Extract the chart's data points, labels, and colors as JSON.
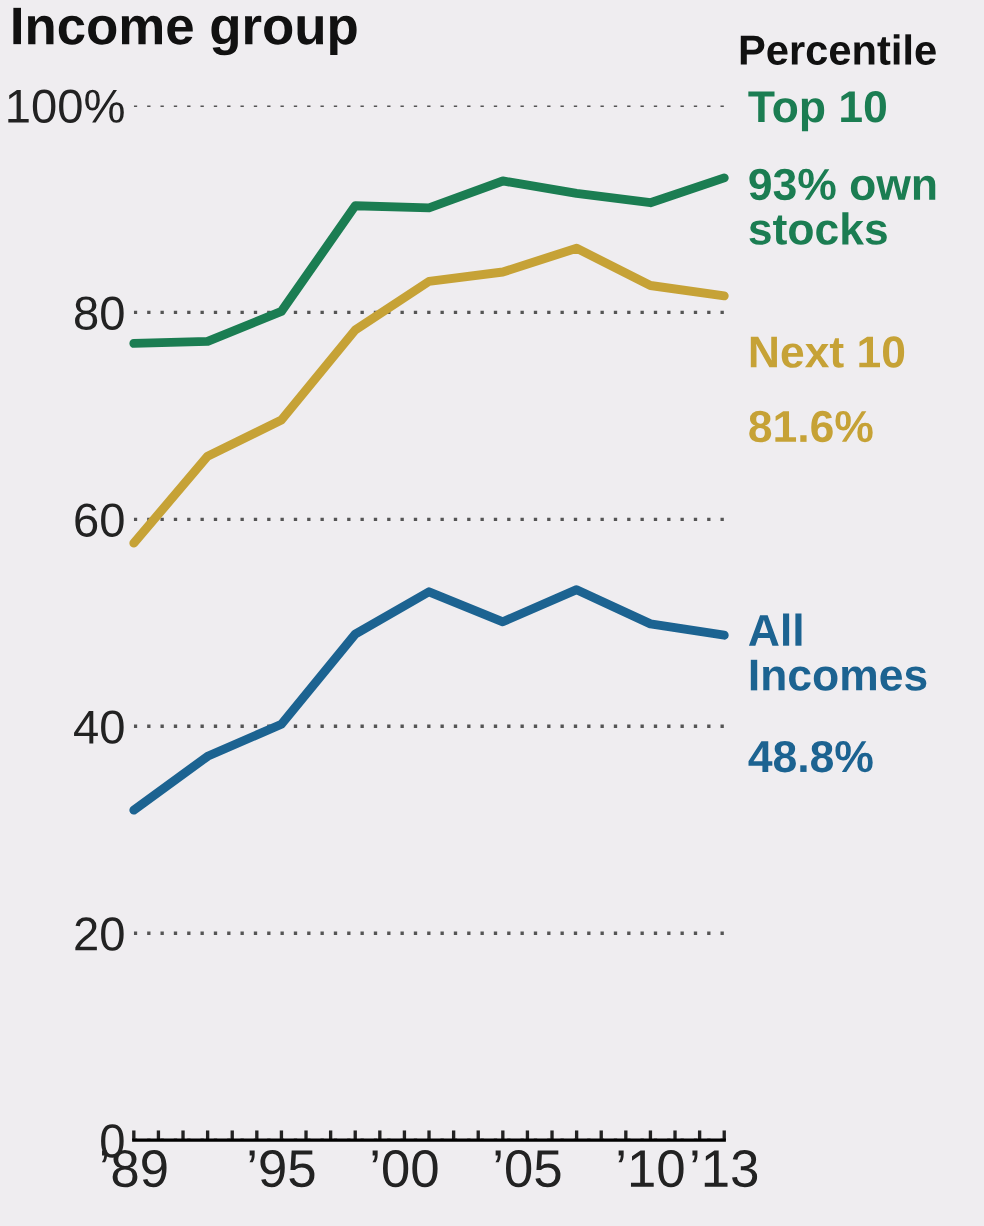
{
  "chart_data": {
    "type": "line",
    "title": "Income group",
    "legend_title": "Percentile",
    "x": [
      1989,
      1992,
      1995,
      1998,
      2001,
      2004,
      2007,
      2010,
      2013
    ],
    "series": [
      {
        "name": "Top 10",
        "color": "#1b7d52",
        "values": [
          77.0,
          77.2,
          80.1,
          90.3,
          90.1,
          92.7,
          91.5,
          90.6,
          93.0
        ]
      },
      {
        "name": "Next 10",
        "color": "#c6a236",
        "values": [
          57.7,
          66.1,
          69.6,
          78.3,
          83.0,
          83.9,
          86.2,
          82.6,
          81.6
        ]
      },
      {
        "name": "All Incomes",
        "color": "#1c6391",
        "values": [
          31.9,
          37.1,
          40.2,
          48.9,
          53.0,
          50.1,
          53.2,
          49.9,
          48.8
        ]
      }
    ],
    "annotations": [
      "93% own stocks",
      "81.6%",
      "48.8%"
    ],
    "xlim": [
      1989,
      2013
    ],
    "xticks": [
      {
        "value": 1989,
        "label": "’89"
      },
      {
        "value": 1990,
        "label": null
      },
      {
        "value": 1991,
        "label": null
      },
      {
        "value": 1992,
        "label": null
      },
      {
        "value": 1993,
        "label": null
      },
      {
        "value": 1994,
        "label": null
      },
      {
        "value": 1995,
        "label": "’95"
      },
      {
        "value": 1996,
        "label": null
      },
      {
        "value": 1997,
        "label": null
      },
      {
        "value": 1998,
        "label": null
      },
      {
        "value": 1999,
        "label": null
      },
      {
        "value": 2000,
        "label": "’00"
      },
      {
        "value": 2001,
        "label": null
      },
      {
        "value": 2002,
        "label": null
      },
      {
        "value": 2003,
        "label": null
      },
      {
        "value": 2004,
        "label": null
      },
      {
        "value": 2005,
        "label": "’05"
      },
      {
        "value": 2006,
        "label": null
      },
      {
        "value": 2007,
        "label": null
      },
      {
        "value": 2008,
        "label": null
      },
      {
        "value": 2009,
        "label": null
      },
      {
        "value": 2010,
        "label": "’10"
      },
      {
        "value": 2011,
        "label": null
      },
      {
        "value": 2012,
        "label": null
      },
      {
        "value": 2013,
        "label": "’13"
      }
    ],
    "ylim": [
      0,
      100
    ],
    "yticks": [
      0,
      20,
      40,
      60,
      80,
      {
        "value": 100,
        "label": "100%"
      }
    ],
    "grid": "y",
    "legend": "right",
    "line_style": "solid",
    "marker": "none"
  }
}
